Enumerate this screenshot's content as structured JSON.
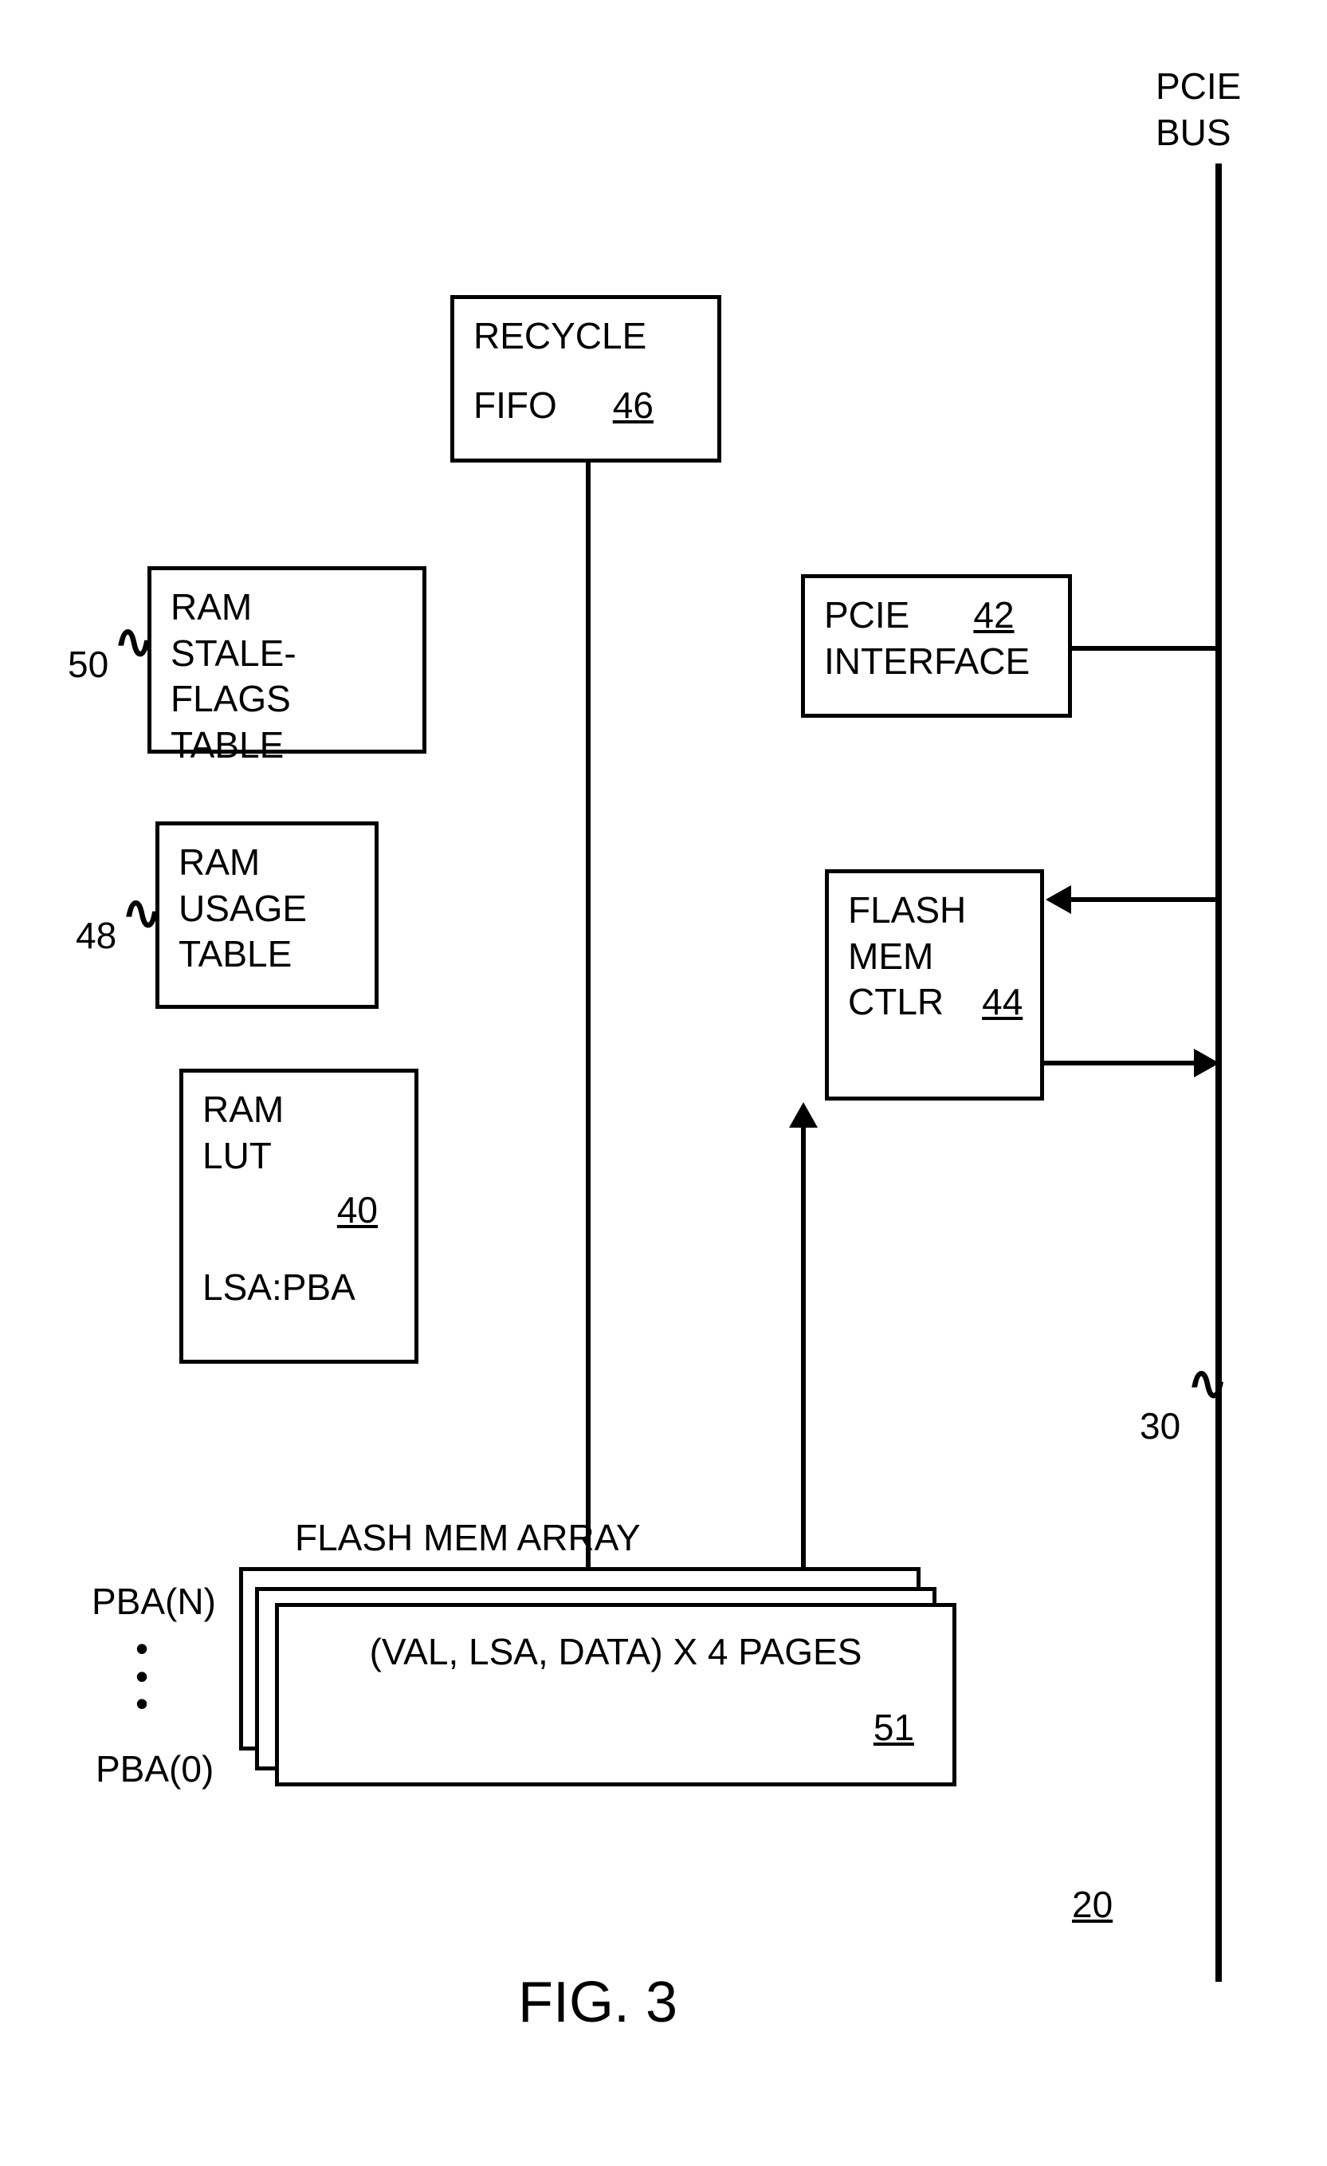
{
  "bus": {
    "label": "PCIE\nBUS",
    "ref": "30"
  },
  "recycle_fifo": {
    "line1": "RECYCLE",
    "line2": "FIFO",
    "ref": "46"
  },
  "stale_flags": {
    "line1": "RAM",
    "line2": "STALE-FLAGS",
    "line3": "TABLE",
    "ref_label": "50"
  },
  "usage_table": {
    "line1": "RAM",
    "line2": "USAGE",
    "line3": "TABLE",
    "ref_label": "48"
  },
  "ram_lut": {
    "line1": "RAM",
    "line2": "LUT",
    "ref": "40",
    "mapping": "LSA:PBA"
  },
  "pcie_if": {
    "line1": "PCIE",
    "line2": "INTERFACE",
    "ref": "42"
  },
  "flash_ctlr": {
    "line1": "FLASH",
    "line2": "MEM",
    "line3": "CTLR",
    "ref": "44"
  },
  "flash_array": {
    "title": "FLASH MEM ARRAY",
    "pba_top": "PBA(N)",
    "pba_bottom": "PBA(0)",
    "content": "(VAL, LSA, DATA) X 4 PAGES",
    "ref": "51"
  },
  "device_ref": "20",
  "figure_title": "FIG. 3",
  "colors": {
    "line": "#000000",
    "bg": "#ffffff"
  }
}
